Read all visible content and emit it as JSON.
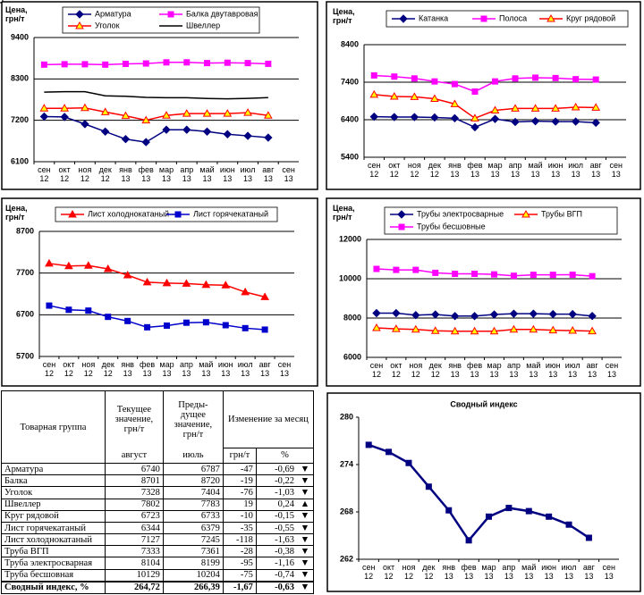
{
  "chart_data": [
    {
      "type": "line",
      "ylabel": "Цена,\nгрн/т",
      "categories": [
        "сен\n12",
        "окт\n12",
        "ноя\n12",
        "дек\n12",
        "янв\n13",
        "фев\n13",
        "мар\n13",
        "апр\n13",
        "май\n13",
        "июн\n13",
        "июл\n13",
        "авг\n13",
        "сен\n13"
      ],
      "ylim": [
        6100,
        9400
      ],
      "yticks": [
        6100,
        7200,
        8300,
        9400
      ],
      "grid": true,
      "series": [
        {
          "name": "Арматура",
          "color": "#000080",
          "marker": "diamond",
          "marker_fill": "#000080",
          "values": [
            7300,
            7290,
            7100,
            6900,
            6700,
            6620,
            6950,
            6950,
            6900,
            6830,
            6787,
            6740,
            null
          ]
        },
        {
          "name": "Балка двутавровая",
          "color": "#ff00ff",
          "marker": "square",
          "marker_fill": "#ff00ff",
          "values": [
            8680,
            8690,
            8690,
            8680,
            8700,
            8710,
            8740,
            8740,
            8720,
            8730,
            8720,
            8701,
            null
          ]
        },
        {
          "name": "Уголок",
          "color": "#ff0000",
          "marker": "triangle",
          "marker_fill": "#ffff00",
          "values": [
            7520,
            7520,
            7530,
            7420,
            7320,
            7200,
            7330,
            7380,
            7380,
            7380,
            7404,
            7328,
            null
          ]
        },
        {
          "name": "Швеллер",
          "color": "#000000",
          "marker": "circle",
          "marker_fill": "#ffffff",
          "values": [
            7950,
            7960,
            7960,
            7850,
            7840,
            7810,
            7800,
            7800,
            7780,
            7770,
            7783,
            7802,
            null
          ]
        }
      ]
    },
    {
      "type": "line",
      "ylabel": "Цена,\nгрн/т",
      "categories": [
        "сен\n12",
        "окт\n12",
        "ноя\n12",
        "дек\n12",
        "янв\n13",
        "фев\n13",
        "мар\n13",
        "апр\n13",
        "май\n13",
        "июн\n13",
        "июл\n13",
        "авг\n13",
        "сен\n13"
      ],
      "ylim": [
        5400,
        8400
      ],
      "yticks": [
        5400,
        6400,
        7400,
        8400
      ],
      "grid": true,
      "series": [
        {
          "name": "Катанка",
          "color": "#000080",
          "marker": "diamond",
          "marker_fill": "#000080",
          "values": [
            6480,
            6470,
            6470,
            6460,
            6440,
            6200,
            6420,
            6340,
            6360,
            6350,
            6350,
            6320,
            null
          ]
        },
        {
          "name": "Полоса",
          "color": "#ff00ff",
          "marker": "square",
          "marker_fill": "#ff00ff",
          "values": [
            7580,
            7550,
            7500,
            7420,
            7350,
            7150,
            7420,
            7500,
            7520,
            7510,
            7480,
            7470,
            null
          ]
        },
        {
          "name": "Круг рядовой",
          "color": "#ff0000",
          "marker": "triangle",
          "marker_fill": "#ffff00",
          "values": [
            7070,
            7020,
            7010,
            6960,
            6820,
            6440,
            6650,
            6700,
            6700,
            6700,
            6733,
            6723,
            null
          ]
        }
      ]
    },
    {
      "type": "line",
      "ylabel": "Цена,\nгрн/т",
      "categories": [
        "сен\n12",
        "окт\n12",
        "ноя\n12",
        "дек\n12",
        "янв\n13",
        "фев\n13",
        "мар\n13",
        "апр\n13",
        "май\n13",
        "июн\n13",
        "июл\n13",
        "авг\n13",
        "сен\n13"
      ],
      "ylim": [
        5700,
        8700
      ],
      "yticks": [
        5700,
        6700,
        7700,
        8700
      ],
      "grid": true,
      "series": [
        {
          "name": "Лист холоднокатаный",
          "color": "#ff0000",
          "marker": "triangle",
          "marker_fill": "#ff0000",
          "values": [
            7930,
            7870,
            7880,
            7800,
            7650,
            7480,
            7460,
            7450,
            7420,
            7410,
            7245,
            7127,
            null
          ]
        },
        {
          "name": "Лист горячекатаный",
          "color": "#0000cc",
          "marker": "square",
          "marker_fill": "#0000cc",
          "values": [
            6920,
            6820,
            6800,
            6650,
            6550,
            6400,
            6440,
            6510,
            6520,
            6450,
            6379,
            6344,
            null
          ]
        }
      ]
    },
    {
      "type": "line",
      "ylabel": "Цена,\nгрн/т",
      "categories": [
        "сен\n12",
        "окт\n12",
        "ноя\n12",
        "дек\n12",
        "янв\n13",
        "фев\n13",
        "мар\n13",
        "апр\n13",
        "май\n13",
        "июн\n13",
        "июл\n13",
        "авг\n13",
        "сен\n13"
      ],
      "ylim": [
        6000,
        12000
      ],
      "yticks": [
        6000,
        8000,
        10000,
        12000
      ],
      "grid": true,
      "series": [
        {
          "name": "Трубы электросварные",
          "color": "#000080",
          "marker": "diamond",
          "marker_fill": "#000080",
          "values": [
            8250,
            8250,
            8150,
            8180,
            8100,
            8100,
            8180,
            8220,
            8220,
            8200,
            8199,
            8104,
            null
          ]
        },
        {
          "name": "Трубы ВГП",
          "color": "#ff0000",
          "marker": "triangle",
          "marker_fill": "#ffff00",
          "values": [
            7500,
            7450,
            7420,
            7350,
            7330,
            7330,
            7330,
            7420,
            7420,
            7380,
            7361,
            7333,
            null
          ]
        },
        {
          "name": "Трубы бесшовные",
          "color": "#ff00ff",
          "marker": "square",
          "marker_fill": "#ff00ff",
          "values": [
            10500,
            10450,
            10450,
            10300,
            10250,
            10250,
            10220,
            10150,
            10200,
            10200,
            10204,
            10129,
            null
          ]
        }
      ]
    },
    {
      "type": "line",
      "title": "Сводный индекс",
      "categories": [
        "сен\n12",
        "окт\n12",
        "ноя\n12",
        "дек\n12",
        "янв\n13",
        "фев\n13",
        "мар\n13",
        "апр\n13",
        "май\n13",
        "июн\n13",
        "июл\n13",
        "авг\n13",
        "сен\n13"
      ],
      "ylim": [
        262,
        280
      ],
      "yticks": [
        262,
        268,
        274,
        280
      ],
      "grid": false,
      "series": [
        {
          "color": "#000080",
          "marker": "square",
          "marker_fill": "#000080",
          "values": [
            276.5,
            275.6,
            274.2,
            271.2,
            268.2,
            264.4,
            267.4,
            268.5,
            268.1,
            267.4,
            266.39,
            264.72,
            null
          ]
        }
      ]
    }
  ],
  "table": {
    "header": [
      "Товарная группа",
      "Текущее значение, грн/т",
      "Преды-дущее значение, грн/т",
      "Изменение за месяц"
    ],
    "subheader": [
      "август",
      "июль",
      "грн/т",
      "%"
    ],
    "rows": [
      [
        "Арматура",
        "6740",
        "6787",
        "-47",
        "-0,69",
        "▼"
      ],
      [
        "Балка",
        "8701",
        "8720",
        "-19",
        "-0,22",
        "▼"
      ],
      [
        "Уголок",
        "7328",
        "7404",
        "-76",
        "-1,03",
        "▼"
      ],
      [
        "Швеллер",
        "7802",
        "7783",
        "19",
        "0,24",
        "▲"
      ],
      [
        "Круг рядовой",
        "6723",
        "6733",
        "-10",
        "-0,15",
        "▼"
      ],
      [
        "Лист горячекатаный",
        "6344",
        "6379",
        "-35",
        "-0,55",
        "▼"
      ],
      [
        "Лист холоднокатаный",
        "7127",
        "7245",
        "-118",
        "-1,63",
        "▼"
      ],
      [
        "Труба ВГП",
        "7333",
        "7361",
        "-28",
        "-0,38",
        "▼"
      ],
      [
        "Труба электросварная",
        "8104",
        "8199",
        "-95",
        "-1,16",
        "▼"
      ],
      [
        "Труба бесшовная",
        "10129",
        "10204",
        "-75",
        "-0,74",
        "▼"
      ],
      [
        "Сводный индекс, %",
        "264,72",
        "266,39",
        "-1,67",
        "-0,63",
        "▼"
      ]
    ]
  }
}
